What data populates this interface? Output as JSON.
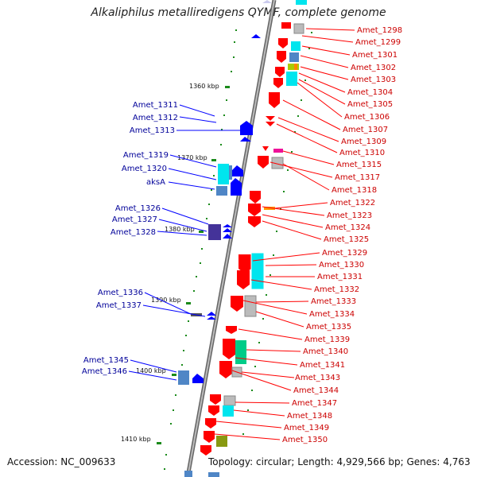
{
  "title": "Alkaliphilus metalliredigens QYMF, complete genome",
  "footer": {
    "accession": "Accession: NC_009633",
    "summary": "Topology: circular; Length: 4,929,566 bp; Genes: 4,763"
  },
  "colors": {
    "forward_gene": "#ff0000",
    "reverse_gene": "#0000ff",
    "forward_label": "#cc0000",
    "reverse_label": "#000099",
    "backbone": "#808080",
    "tick": "#008000"
  },
  "scale_ticks": [
    "1360 kbp",
    "1370 kbp",
    "1380 kbp",
    "1390 kbp",
    "1400 kbp",
    "1410 kbp"
  ],
  "forward_labels": [
    "Amet_1298",
    "Amet_1299",
    "Amet_1301",
    "Amet_1302",
    "Amet_1303",
    "Amet_1304",
    "Amet_1305",
    "Amet_1306",
    "Amet_1307",
    "Amet_1309",
    "Amet_1310",
    "Amet_1315",
    "Amet_1317",
    "Amet_1318",
    "Amet_1322",
    "Amet_1323",
    "Amet_1324",
    "Amet_1325",
    "Amet_1329",
    "Amet_1330",
    "Amet_1331",
    "Amet_1332",
    "Amet_1333",
    "Amet_1334",
    "Amet_1335",
    "Amet_1339",
    "Amet_1340",
    "Amet_1341",
    "Amet_1343",
    "Amet_1344",
    "Amet_1347",
    "Amet_1348",
    "Amet_1349",
    "Amet_1350"
  ],
  "reverse_labels": [
    "Amet_1311",
    "Amet_1312",
    "Amet_1313",
    "Amet_1319",
    "Amet_1320",
    "aksA",
    "Amet_1326",
    "Amet_1327",
    "Amet_1328",
    "Amet_1336",
    "Amet_1337",
    "Amet_1345",
    "Amet_1346"
  ]
}
